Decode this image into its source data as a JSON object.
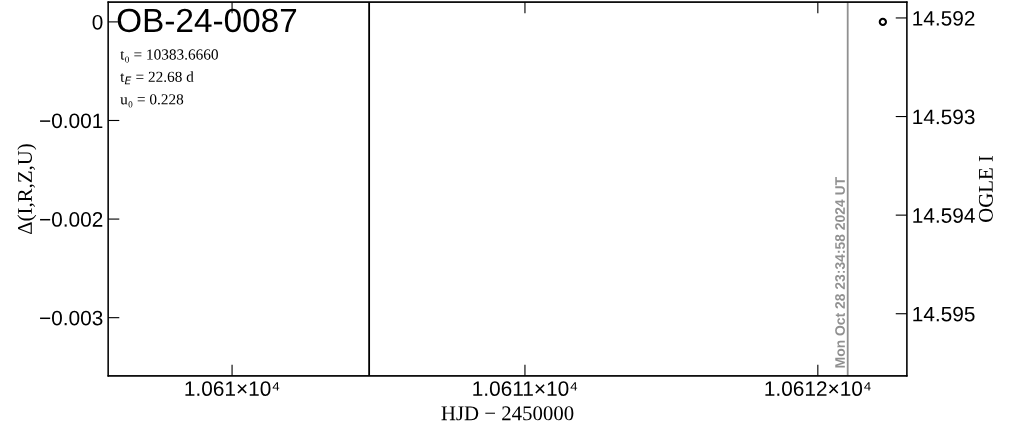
{
  "chart_data": {
    "type": "scatter",
    "title": "OB-24-0087",
    "xlabel": "HJD − 2450000",
    "ylabel": "Δ(I,R,Z,U)",
    "y2label": "OGLE I",
    "annotations": [
      "t₀ = 10383.6660",
      "t$_{E}$ = 22.68 d",
      "u₀ = 0.228",
      "Mon Oct 28 23:34:58 2024 UT"
    ],
    "xlim": [
      10609.577,
      10612.304
    ],
    "xticks": [
      {
        "value": 10610,
        "label": "1.061×10⁴"
      },
      {
        "value": 10611,
        "label": "1.0611×10⁴"
      },
      {
        "value": 10612,
        "label": "1.0612×10⁴"
      }
    ],
    "ylim": [
      -0.00359,
      0.0002
    ],
    "yticks": [
      0,
      {
        "value": -0.001,
        "label": "−0.001"
      },
      {
        "value": -0.002,
        "label": "−0.002"
      },
      {
        "value": -0.003,
        "label": "−0.003"
      }
    ],
    "y2lim": [
      14.59563,
      14.59184
    ],
    "y2ticks": [
      14.592,
      14.593,
      14.594,
      14.595
    ],
    "series": [
      {
        "axis": "y2",
        "color": "#000000",
        "x": [
          10612.222
        ],
        "values": [
          14.59204
        ]
      }
    ],
    "marker": "circle",
    "ref_lines": [
      {
        "axis": "x",
        "value": 10610.468,
        "color": "#000000"
      },
      {
        "axis": "x",
        "value": 10612.102,
        "color": "#909090"
      }
    ],
    "grid": false,
    "legend": false
  }
}
